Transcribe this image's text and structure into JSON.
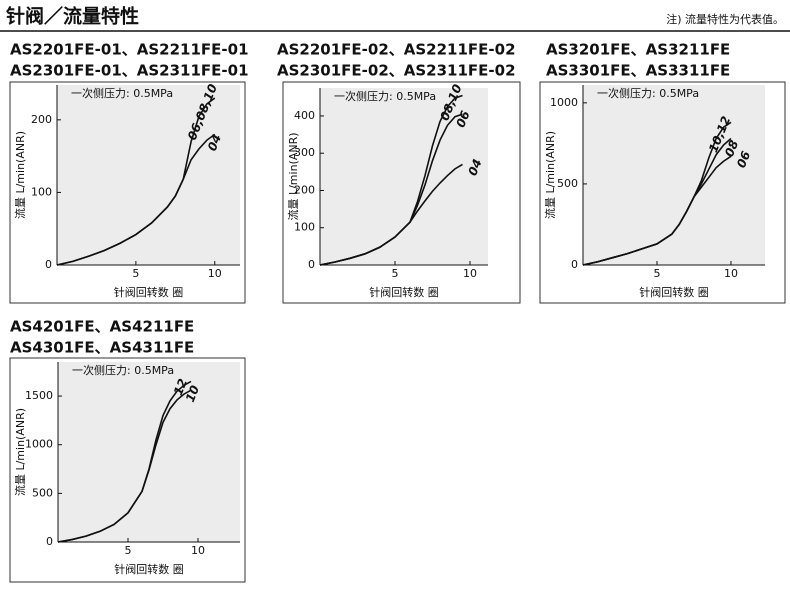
{
  "header": {
    "title": "针阀／流量特性",
    "note": "注) 流量特性为代表值。"
  },
  "chart_data": [
    {
      "type": "line",
      "title": "AS2201FE-01、AS2211FE-01",
      "subtitle": "AS2301FE-01、AS2311FE-01",
      "annotation": "一次侧压力: 0.5MPa",
      "x_label": "针阀回转数  圈",
      "y_label": "流量  L/min(ANR)",
      "xlim": [
        0,
        11.6
      ],
      "ylim": [
        0,
        248
      ],
      "xticks": [
        5,
        10
      ],
      "yticks": [
        0,
        100,
        200
      ],
      "x": [
        0,
        1,
        2,
        3,
        4,
        5,
        6,
        7,
        7.5,
        8,
        8.5,
        9,
        9.5,
        10
      ],
      "series": [
        {
          "name": "06,08,10",
          "color": "#111111",
          "values": [
            0,
            5,
            12,
            20,
            30,
            42,
            58,
            80,
            95,
            118,
            170,
            205,
            222,
            230
          ]
        },
        {
          "name": "04",
          "color": "#111111",
          "values": [
            0,
            5,
            12,
            20,
            30,
            42,
            58,
            80,
            95,
            118,
            145,
            160,
            172,
            180
          ]
        }
      ]
    },
    {
      "type": "line",
      "title": "AS2201FE-02、AS2211FE-02",
      "subtitle": "AS2301FE-02、AS2311FE-02",
      "annotation": "一次侧压力: 0.5MPa",
      "x_label": "针阀回转数  圈",
      "y_label": "流量  L/min(ANR)",
      "xlim": [
        0,
        11.2
      ],
      "ylim": [
        0,
        475
      ],
      "xticks": [
        5,
        10
      ],
      "yticks": [
        0,
        100,
        200,
        300,
        400
      ],
      "x": [
        0,
        1,
        2,
        3,
        4,
        5,
        6,
        6.5,
        7,
        7.5,
        8,
        8.5,
        9,
        9.5
      ],
      "series": [
        {
          "name": "08,10",
          "color": "#111111",
          "values": [
            0,
            8,
            18,
            30,
            48,
            75,
            115,
            170,
            240,
            320,
            385,
            425,
            448,
            455
          ]
        },
        {
          "name": "06",
          "color": "#111111",
          "values": [
            0,
            8,
            18,
            30,
            48,
            75,
            115,
            160,
            215,
            280,
            335,
            375,
            398,
            405
          ]
        },
        {
          "name": "04",
          "color": "#111111",
          "values": [
            0,
            8,
            18,
            30,
            48,
            75,
            115,
            145,
            172,
            198,
            220,
            240,
            258,
            270
          ]
        }
      ]
    },
    {
      "type": "line",
      "title": "AS3201FE、AS3211FE",
      "subtitle": "AS3301FE、AS3311FE",
      "annotation": "一次侧压力: 0.5MPa",
      "x_label": "针阀回转数  圈",
      "y_label": "流量  L/min(ANR)",
      "xlim": [
        0,
        12.3
      ],
      "ylim": [
        0,
        1110
      ],
      "xticks": [
        5,
        10
      ],
      "yticks": [
        0,
        500,
        1000
      ],
      "x": [
        0,
        1,
        2,
        3,
        4,
        5,
        6,
        6.5,
        7,
        7.5,
        8,
        8.5,
        9,
        9.5,
        10
      ],
      "series": [
        {
          "name": "10,12",
          "color": "#111111",
          "values": [
            0,
            20,
            45,
            70,
            100,
            130,
            190,
            250,
            330,
            420,
            520,
            660,
            780,
            850,
            880
          ]
        },
        {
          "name": "08",
          "color": "#111111",
          "values": [
            0,
            20,
            45,
            70,
            100,
            130,
            190,
            250,
            330,
            420,
            500,
            590,
            680,
            740,
            780
          ]
        },
        {
          "name": "06",
          "color": "#111111",
          "values": [
            0,
            20,
            45,
            70,
            100,
            130,
            190,
            250,
            330,
            420,
            480,
            540,
            600,
            640,
            670
          ]
        }
      ]
    },
    {
      "type": "line",
      "title": "AS4201FE、AS4211FE",
      "subtitle": "AS4301FE、AS4311FE",
      "annotation": "一次侧压力: 0.5MPa",
      "x_label": "针阀回转数  圈",
      "y_label": "流量  L/min(ANR)",
      "xlim": [
        0,
        13
      ],
      "ylim": [
        0,
        1850
      ],
      "xticks": [
        5,
        10
      ],
      "yticks": [
        0,
        500,
        1000,
        1500
      ],
      "x": [
        0,
        1,
        2,
        3,
        4,
        5,
        6,
        6.5,
        7,
        7.5,
        8,
        8.5,
        9,
        9.5
      ],
      "series": [
        {
          "name": "12",
          "color": "#111111",
          "values": [
            0,
            25,
            60,
            110,
            180,
            300,
            520,
            750,
            1050,
            1300,
            1450,
            1550,
            1610,
            1650
          ]
        },
        {
          "name": "10",
          "color": "#111111",
          "values": [
            0,
            25,
            60,
            110,
            180,
            300,
            520,
            740,
            1000,
            1230,
            1370,
            1460,
            1520,
            1560
          ]
        }
      ]
    }
  ]
}
